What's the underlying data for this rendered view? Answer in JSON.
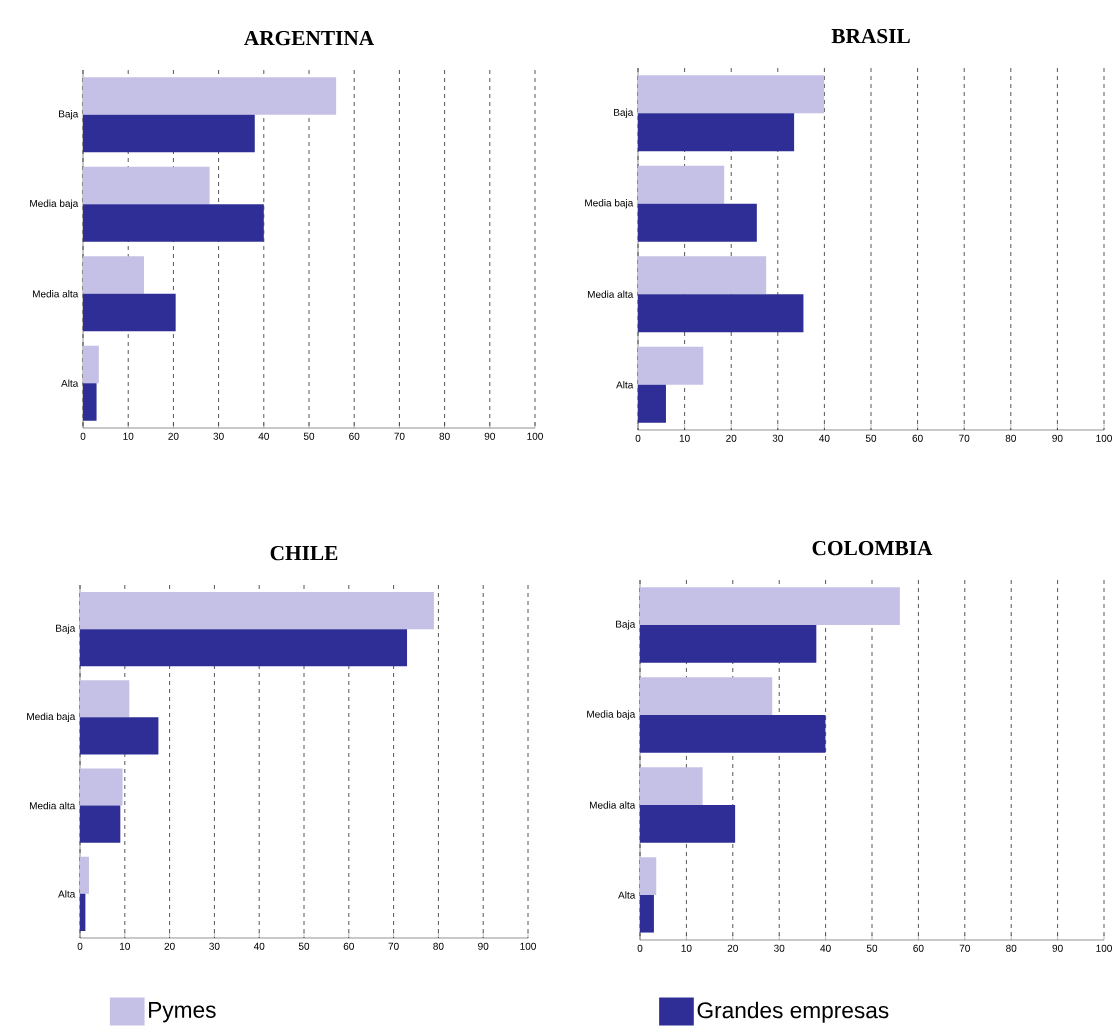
{
  "chart_data": [
    {
      "type": "bar",
      "orientation": "horizontal",
      "title": "ARGENTINA",
      "categories": [
        "Baja",
        "Media baja",
        "Media alta",
        "Alta"
      ],
      "xlim": [
        0,
        100
      ],
      "xticks": [
        0,
        10,
        20,
        30,
        40,
        50,
        60,
        70,
        80,
        90,
        100
      ],
      "grid": "x",
      "legend": "bottom",
      "series": [
        {
          "name": "Pymes",
          "color": "#c4c0e6",
          "values": [
            56,
            28,
            13.5,
            3.5
          ]
        },
        {
          "name": "Grandes empresas",
          "color": "#2e2e96",
          "values": [
            38,
            40,
            20.5,
            3
          ]
        }
      ]
    },
    {
      "type": "bar",
      "orientation": "horizontal",
      "title": "BRASIL",
      "categories": [
        "Baja",
        "Media baja",
        "Media alta",
        "Alta"
      ],
      "xlim": [
        0,
        100
      ],
      "xticks": [
        0,
        10,
        20,
        30,
        40,
        50,
        60,
        70,
        80,
        90,
        100
      ],
      "grid": "x",
      "series": [
        {
          "color": "#c4c0e6",
          "values": [
            40,
            18.5,
            27.5,
            14
          ]
        },
        {
          "color": "#2e2e96",
          "values": [
            33.5,
            25.5,
            35.5,
            6
          ]
        }
      ]
    },
    {
      "type": "bar",
      "orientation": "horizontal",
      "title": "CHILE",
      "categories": [
        "Baja",
        "Media baja",
        "Media alta",
        "Alta"
      ],
      "xlim": [
        0,
        100
      ],
      "xticks": [
        0,
        10,
        20,
        30,
        40,
        50,
        60,
        70,
        80,
        90,
        100
      ],
      "grid": "x",
      "series": [
        {
          "color": "#c4c0e6",
          "values": [
            79,
            11,
            9.5,
            2
          ]
        },
        {
          "color": "#2e2e96",
          "values": [
            73,
            17.5,
            9,
            1.2
          ]
        }
      ]
    },
    {
      "type": "bar",
      "orientation": "horizontal",
      "title": "COLOMBIA",
      "categories": [
        "Baja",
        "Media baja",
        "Media alta",
        "Alta"
      ],
      "xlim": [
        0,
        100
      ],
      "xticks": [
        0,
        10,
        20,
        30,
        40,
        50,
        60,
        70,
        80,
        90,
        100
      ],
      "grid": "x",
      "series": [
        {
          "color": "#c4c0e6",
          "values": [
            56,
            28.5,
            13.5,
            3.5
          ]
        },
        {
          "color": "#2e2e96",
          "values": [
            38,
            40,
            20.5,
            3
          ]
        }
      ]
    }
  ]
}
